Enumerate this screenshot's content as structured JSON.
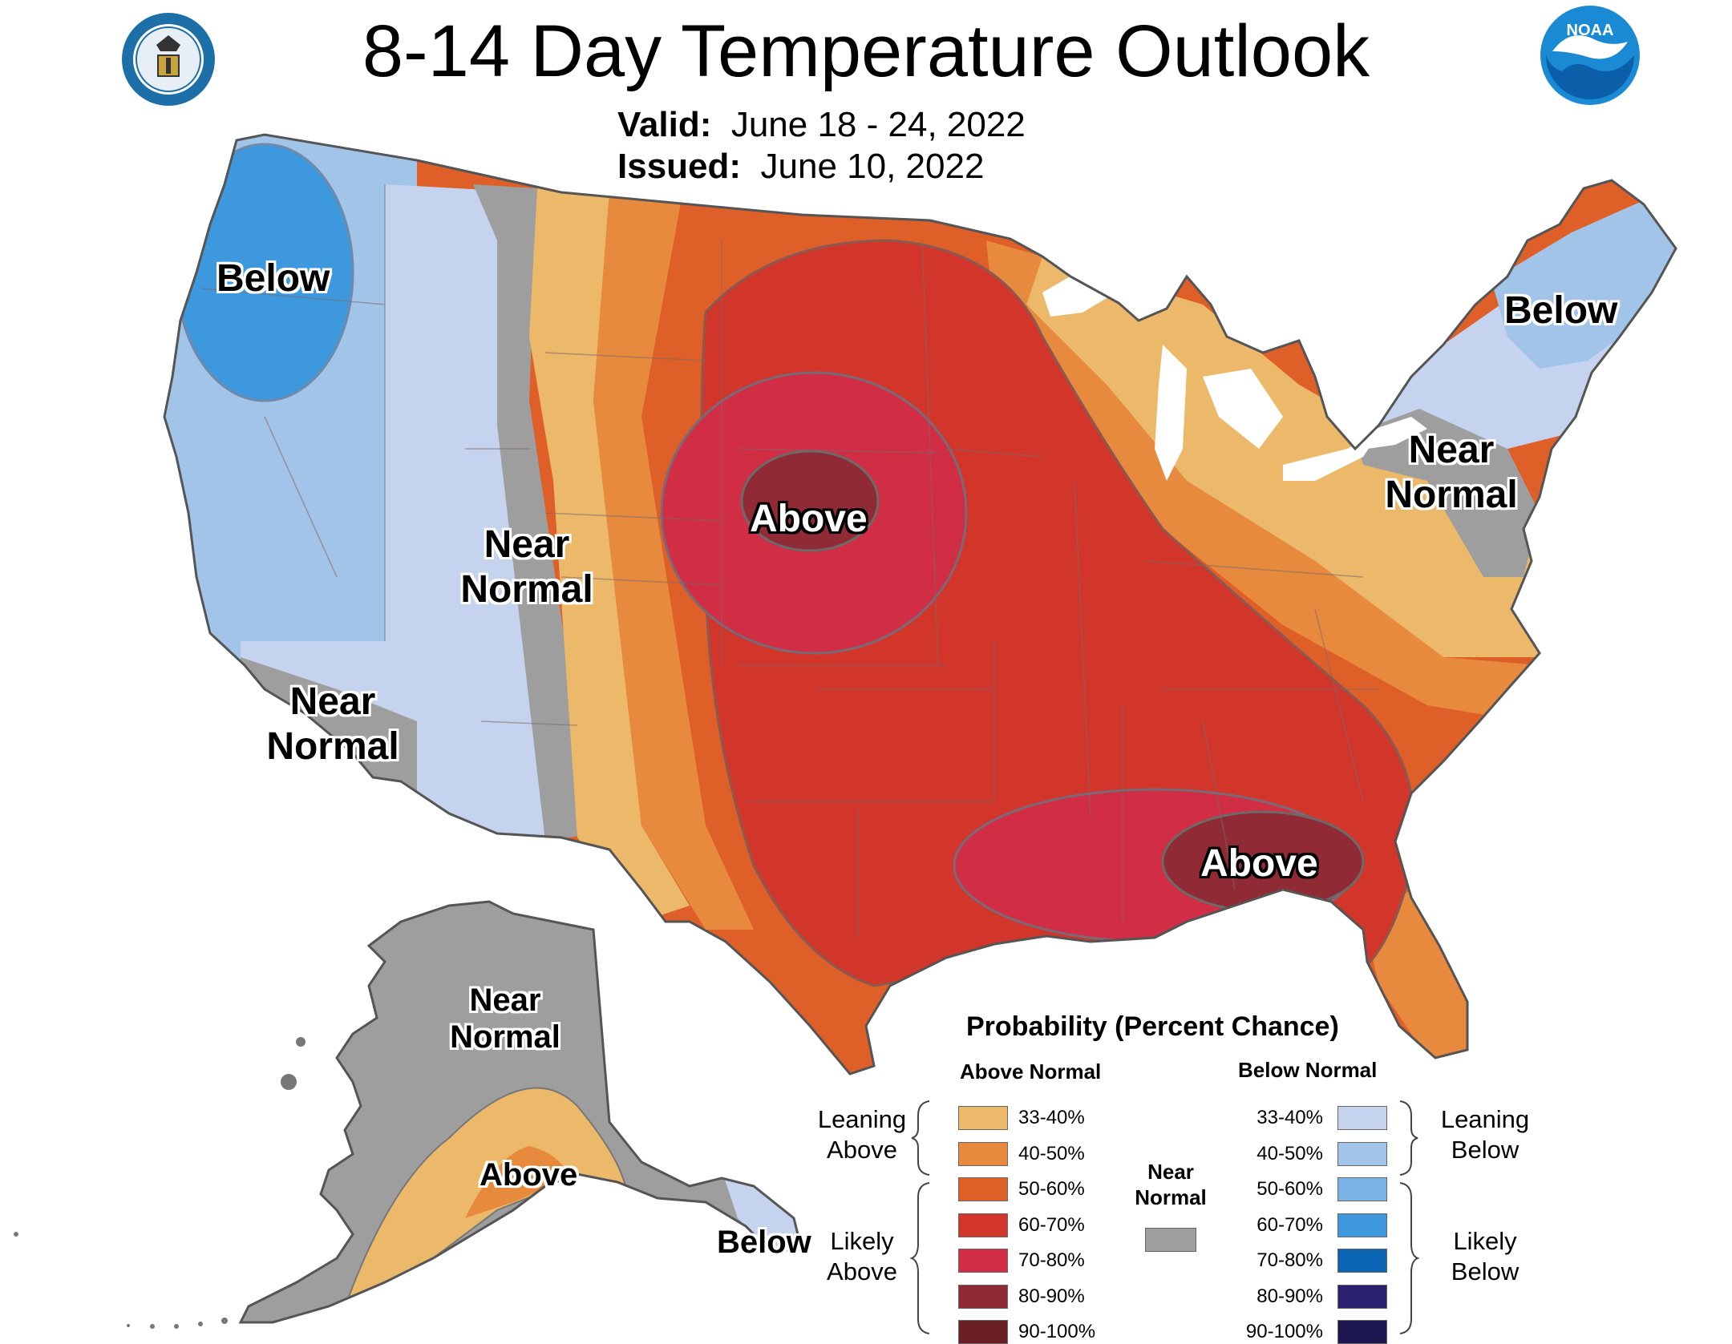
{
  "title": "8-14 Day Temperature Outlook",
  "valid": {
    "label": "Valid:",
    "value": "June 18 - 24, 2022"
  },
  "issued": {
    "label": "Issued:",
    "value": "June 10, 2022"
  },
  "logos": {
    "left": "department-of-commerce-seal",
    "right": "noaa-logo"
  },
  "map_labels": {
    "nw_below": "Below",
    "ne_below": "Below",
    "center_above": "Above",
    "se_above": "Above",
    "west_near": [
      "Near",
      "Normal"
    ],
    "socal_near": [
      "Near",
      "Normal"
    ],
    "east_near": [
      "Near",
      "Normal"
    ],
    "ak_near": [
      "Near",
      "Normal"
    ],
    "ak_above": "Above",
    "ak_below": "Below"
  },
  "legend": {
    "title": "Probability (Percent Chance)",
    "above_header": "Above Normal",
    "below_header": "Below Normal",
    "leaning_above": [
      "Leaning",
      "Above"
    ],
    "likely_above": [
      "Likely",
      "Above"
    ],
    "leaning_below": [
      "Leaning",
      "Below"
    ],
    "likely_below": [
      "Likely",
      "Below"
    ],
    "near_normal": [
      "Near",
      "Normal"
    ],
    "near_normal_color": "#9e9e9e",
    "above": [
      {
        "label": "33-40%",
        "color": "#ecb86a"
      },
      {
        "label": "40-50%",
        "color": "#e78a3e"
      },
      {
        "label": "50-60%",
        "color": "#df5f29"
      },
      {
        "label": "60-70%",
        "color": "#d2352a"
      },
      {
        "label": "70-80%",
        "color": "#d12d45"
      },
      {
        "label": "80-90%",
        "color": "#902a35"
      },
      {
        "label": "90-100%",
        "color": "#6a1f25"
      }
    ],
    "below": [
      {
        "label": "33-40%",
        "color": "#c5d3ee"
      },
      {
        "label": "40-50%",
        "color": "#a1c4e8"
      },
      {
        "label": "50-60%",
        "color": "#7ab3e5"
      },
      {
        "label": "60-70%",
        "color": "#3d98dd"
      },
      {
        "label": "70-80%",
        "color": "#0a64b4"
      },
      {
        "label": "80-90%",
        "color": "#2a2070"
      },
      {
        "label": "90-100%",
        "color": "#1c1650"
      }
    ]
  }
}
